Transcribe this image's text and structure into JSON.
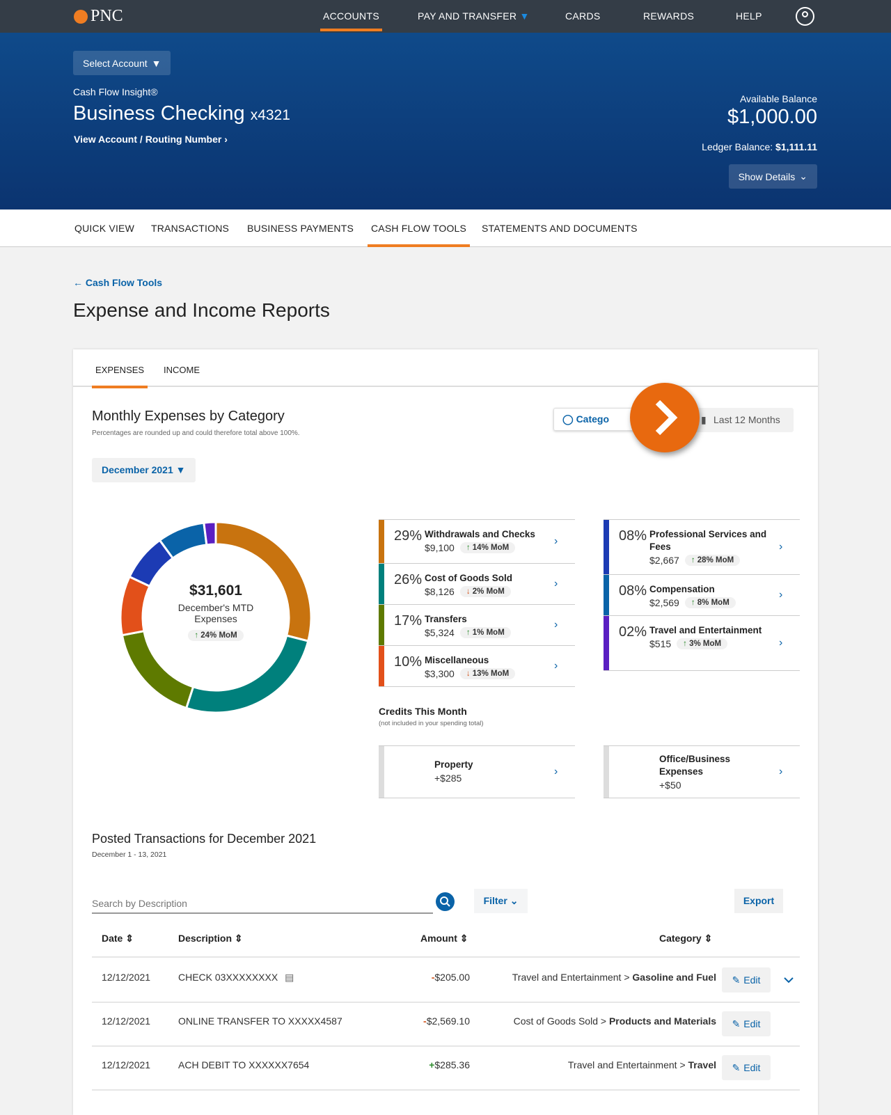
{
  "topnav": {
    "brand": "PNC",
    "items": [
      "ACCOUNTS",
      "PAY AND TRANSFER",
      "CARDS",
      "REWARDS",
      "HELP"
    ]
  },
  "hero": {
    "select_account": "Select Account",
    "product": "Cash Flow Insight®",
    "account_name": "Business Checking",
    "account_mask": "x4321",
    "view_link": "View Account / Routing Number",
    "available_label": "Available Balance",
    "available": "$1,000.00",
    "ledger_label": "Ledger Balance:",
    "ledger": "$1,111.11",
    "show_details": "Show Details"
  },
  "subnav": [
    "QUICK VIEW",
    "TRANSACTIONS",
    "BUSINESS PAYMENTS",
    "CASH FLOW TOOLS",
    "STATEMENTS AND DOCUMENTS"
  ],
  "back_link": "Cash Flow Tools",
  "page_title": "Expense and Income Reports",
  "tabs": [
    "EXPENSES",
    "INCOME"
  ],
  "section": {
    "title": "Monthly Expenses by Category",
    "note": "Percentages are rounded up and could therefore total above 100%.",
    "category_btn": "Catego",
    "last12_btn": "Last 12 Months",
    "month": "December 2021"
  },
  "donut": {
    "total": "$31,601",
    "label1": "December's MTD",
    "label2": "Expenses",
    "mom": "24% MoM"
  },
  "categories": [
    {
      "pct": "29%",
      "name": "Withdrawals and Checks",
      "amount": "$9,100",
      "mom": "14% MoM",
      "dir": "up",
      "color": "#c8730f",
      "value": 29
    },
    {
      "pct": "26%",
      "name": "Cost of Goods Sold",
      "amount": "$8,126",
      "mom": "2% MoM",
      "dir": "down",
      "color": "#00807c",
      "value": 26
    },
    {
      "pct": "17%",
      "name": "Transfers",
      "amount": "$5,324",
      "mom": "1% MoM",
      "dir": "up",
      "color": "#5e7a00",
      "value": 17
    },
    {
      "pct": "10%",
      "name": "Miscellaneous",
      "amount": "$3,300",
      "mom": "13% MoM",
      "dir": "down",
      "color": "#e2501a",
      "value": 10
    },
    {
      "pct": "08%",
      "name": "Professional Services and Fees",
      "amount": "$2,667",
      "mom": "28% MoM",
      "dir": "up",
      "color": "#1c3bb4",
      "value": 8
    },
    {
      "pct": "08%",
      "name": "Compensation",
      "amount": "$2,569",
      "mom": "8% MoM",
      "dir": "up",
      "color": "#0a63a8",
      "value": 8
    },
    {
      "pct": "02%",
      "name": "Travel and Entertainment",
      "amount": "$515",
      "mom": "3% MoM",
      "dir": "up",
      "color": "#5a1fc2",
      "value": 2
    }
  ],
  "credits": {
    "title": "Credits This Month",
    "note": "(not included in your spending total)",
    "items": [
      {
        "name": "Property",
        "amount": "+$285"
      },
      {
        "name": "Office/Business Expenses",
        "amount": "+$50"
      }
    ]
  },
  "transactions": {
    "title": "Posted Transactions for December 2021",
    "range": "December 1 - 13, 2021",
    "search_placeholder": "Search by Description",
    "filter": "Filter",
    "export": "Export",
    "headers": [
      "Date",
      "Description",
      "Amount",
      "Category"
    ],
    "edit": "Edit",
    "rows": [
      {
        "date": "12/12/2021",
        "desc": "CHECK 03XXXXXXXX",
        "sign": "-",
        "amount": "$205.00",
        "cat": "Travel and Entertainment > ",
        "sub": "Gasoline and Fuel"
      },
      {
        "date": "12/12/2021",
        "desc": "ONLINE TRANSFER TO XXXXX4587",
        "sign": "-",
        "amount": "$2,569.10",
        "cat": "Cost of Goods Sold > ",
        "sub": "Products and Materials"
      },
      {
        "date": "12/12/2021",
        "desc": "ACH DEBIT TO XXXXXX7654",
        "sign": "+",
        "amount": "$285.36",
        "cat": "Travel and Entertainment > ",
        "sub": "Travel"
      }
    ]
  }
}
